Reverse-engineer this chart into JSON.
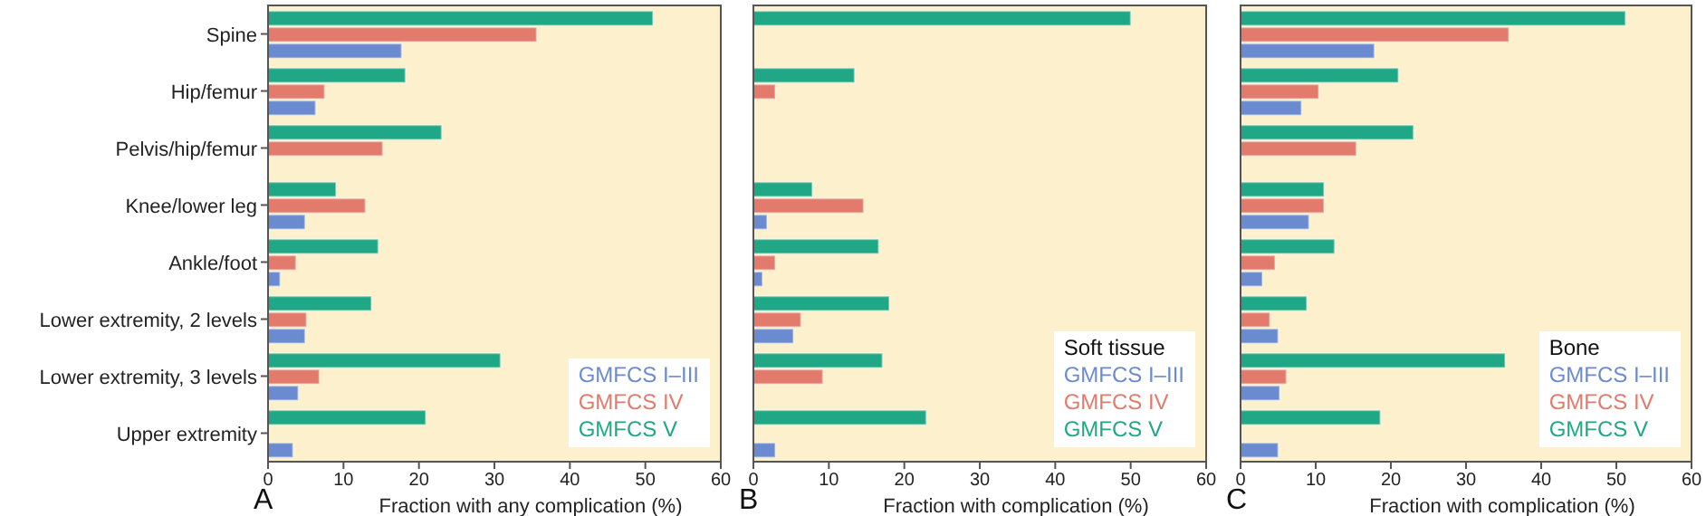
{
  "chart_data": [
    {
      "type": "bar",
      "orientation": "horizontal",
      "categories": [
        "Spine",
        "Hip/femur",
        "Pelvis/hip/femur",
        "Knee/lower leg",
        "Ankle/foot",
        "Lower extremity, 2 levels",
        "Lower extremity, 3 levels",
        "Upper extremity"
      ],
      "xlabel": "Fraction with any complication (%)",
      "xlim": [
        0,
        60
      ],
      "xticks": [
        0,
        10,
        20,
        30,
        40,
        50,
        60
      ],
      "legend": "bottom right",
      "annotations": [
        "A"
      ],
      "series": [
        {
          "name": "GMFCS I–III",
          "color": "#6b8bd0",
          "values": [
            17.7,
            6.3,
            null,
            4.9,
            1.6,
            4.9,
            4.0,
            3.3
          ]
        },
        {
          "name": "GMFCS IV",
          "color": "#e37b6c",
          "values": [
            35.6,
            7.5,
            15.2,
            12.9,
            3.7,
            5.1,
            6.8,
            null
          ]
        },
        {
          "name": "GMFCS V",
          "color": "#20a886",
          "values": [
            51,
            18.2,
            23,
            9,
            14.6,
            13.7,
            30.8,
            20.9
          ]
        }
      ]
    },
    {
      "type": "bar",
      "orientation": "horizontal",
      "categories": [
        null,
        null,
        null,
        null,
        null,
        null,
        null,
        null
      ],
      "tick_labels": "x",
      "xlabel": "Fraction with complication (%)",
      "xlim": [
        0,
        60
      ],
      "xticks": [
        0,
        10,
        20,
        30,
        40,
        50,
        60
      ],
      "legend": "bottom right",
      "legend_title": "Soft tissue",
      "annotations": [
        "B"
      ],
      "series": [
        {
          "name": "GMFCS I–III",
          "color": "#6b8bd0",
          "values": [
            null,
            null,
            null,
            1.8,
            1.2,
            5.3,
            null,
            2.9
          ]
        },
        {
          "name": "GMFCS IV",
          "color": "#e37b6c",
          "values": [
            null,
            2.9,
            null,
            14.6,
            2.9,
            6.3,
            9.2,
            null
          ]
        },
        {
          "name": "GMFCS V",
          "color": "#20a886",
          "values": [
            50,
            13.4,
            null,
            7.8,
            16.6,
            18,
            17.1,
            22.9
          ]
        }
      ]
    },
    {
      "type": "bar",
      "orientation": "horizontal",
      "categories": [
        null,
        null,
        null,
        null,
        null,
        null,
        null,
        null
      ],
      "tick_labels": "x",
      "xlabel": "Fraction with complication (%)",
      "xlim": [
        0,
        60
      ],
      "xticks": [
        0,
        10,
        20,
        30,
        40,
        50,
        60
      ],
      "legend": "bottom right",
      "legend_title": "Bone",
      "annotations": [
        "C"
      ],
      "series": [
        {
          "name": "GMFCS I–III",
          "color": "#6b8bd0",
          "values": [
            17.8,
            8.1,
            null,
            9.1,
            2.9,
            5.0,
            5.2,
            5.0
          ]
        },
        {
          "name": "GMFCS IV",
          "color": "#e37b6c",
          "values": [
            35.7,
            10.4,
            15.4,
            11.1,
            4.6,
            3.9,
            6.1,
            null
          ]
        },
        {
          "name": "GMFCS V",
          "color": "#20a886",
          "values": [
            51.2,
            21,
            23,
            11.1,
            12.5,
            8.8,
            35.2,
            18.6
          ]
        }
      ]
    }
  ]
}
